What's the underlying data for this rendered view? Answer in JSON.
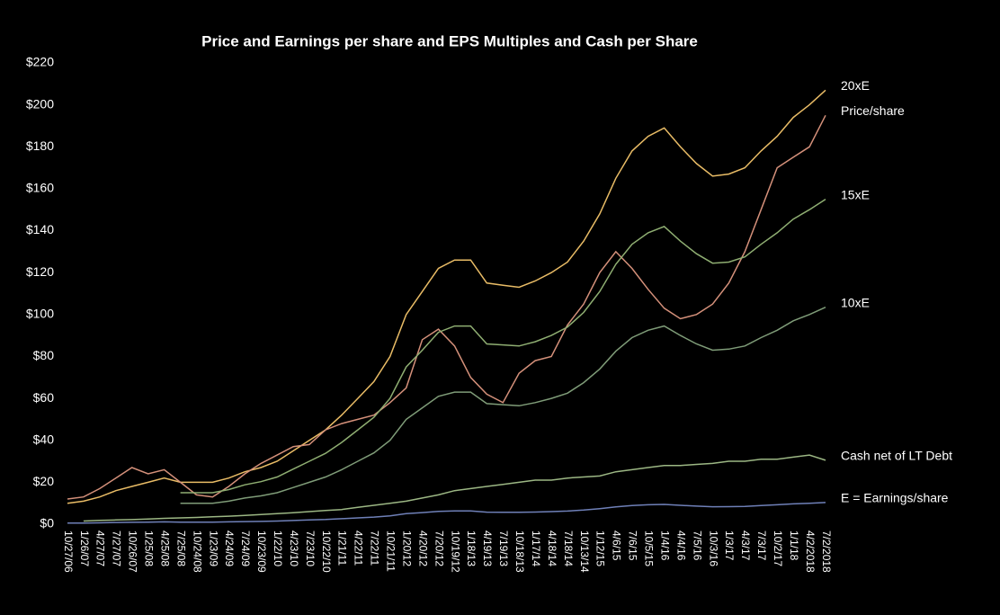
{
  "chart_data": {
    "type": "line",
    "title": "Price and Earnings per share and EPS Multiples and Cash per Share",
    "categories": [
      "10/27/06",
      "1/26/07",
      "4/27/07",
      "7/27/07",
      "10/26/07",
      "1/25/08",
      "4/25/08",
      "7/25/08",
      "10/24/08",
      "1/23/09",
      "4/24/09",
      "7/24/09",
      "10/23/09",
      "1/22/10",
      "4/23/10",
      "7/23/10",
      "10/22/10",
      "1/21/11",
      "4/22/11",
      "7/22/11",
      "10/21/11",
      "1/20/12",
      "4/20/12",
      "7/20/12",
      "10/19/12",
      "1/18/13",
      "4/19/13",
      "7/19/13",
      "10/18/13",
      "1/17/14",
      "4/18/14",
      "7/18/14",
      "10/13/14",
      "1/12/15",
      "4/6/15",
      "7/6/15",
      "10/5/15",
      "1/4/16",
      "4/4/16",
      "7/5/16",
      "10/3/16",
      "1/3/17",
      "4/3/17",
      "7/3/17",
      "10/2/17",
      "1/1/18",
      "4/2/2018",
      "7/2/2018"
    ],
    "series": [
      {
        "name": "20xE",
        "color": "#e9bc66",
        "values": [
          10,
          11,
          13,
          16,
          18,
          20,
          22,
          20,
          20,
          20,
          22,
          25,
          27,
          30,
          35,
          40,
          45,
          52,
          60,
          68,
          80,
          100,
          111,
          122,
          126,
          126,
          115,
          114,
          113,
          116,
          120,
          125,
          135,
          148,
          165,
          178,
          185,
          189,
          180,
          172,
          166,
          167,
          170,
          178,
          185,
          194,
          200,
          207
        ]
      },
      {
        "name": "Price/share",
        "color": "#d4907a",
        "values": [
          12,
          13,
          17,
          22,
          27,
          24,
          26,
          20,
          14,
          13,
          18,
          24,
          29,
          33,
          37,
          38,
          45,
          48,
          50,
          52,
          58,
          65,
          88,
          93,
          85,
          70,
          62,
          58,
          72,
          78,
          80,
          95,
          105,
          120,
          130,
          122,
          112,
          103,
          98,
          100,
          105,
          115,
          130,
          150,
          170,
          175,
          180,
          195
        ]
      },
      {
        "name": "15xE",
        "color": "#8fae72",
        "values": [
          null,
          null,
          null,
          null,
          null,
          null,
          null,
          15,
          15,
          15,
          16.5,
          18.8,
          20.3,
          22.5,
          26.3,
          30,
          33.8,
          39,
          45,
          51,
          60,
          75,
          83,
          91.5,
          94.5,
          94.5,
          86,
          85.5,
          85,
          87,
          90,
          94,
          101,
          111,
          124,
          133.5,
          139,
          142,
          135,
          129,
          124.5,
          125,
          127.5,
          133.5,
          139,
          145.5,
          150,
          155
        ]
      },
      {
        "name": "10xE",
        "color": "#7f9c78",
        "values": [
          null,
          null,
          null,
          null,
          null,
          null,
          null,
          10,
          10,
          10,
          11,
          12.5,
          13.5,
          15,
          17.5,
          20,
          22.5,
          26,
          30,
          34,
          40,
          50,
          55.5,
          61,
          63,
          63,
          57.5,
          57,
          56.5,
          58,
          60,
          62.5,
          67.5,
          74,
          82.5,
          89,
          92.5,
          94.5,
          90,
          86,
          83,
          83.5,
          85,
          89,
          92.5,
          97,
          100,
          103.5
        ]
      },
      {
        "name": "Cash net of LT Debt",
        "color": "#9cb784",
        "values": [
          null,
          1.5,
          1.8,
          2,
          2.2,
          2.5,
          2.8,
          3,
          3.2,
          3.5,
          3.8,
          4.2,
          4.6,
          5,
          5.5,
          6,
          6.5,
          7,
          8,
          9,
          10,
          11,
          12.5,
          14,
          16,
          17,
          18,
          19,
          20,
          21,
          21,
          22,
          22.5,
          23,
          25,
          26,
          27,
          28,
          28,
          28.5,
          29,
          30,
          30,
          31,
          31,
          32,
          33,
          30.5
        ]
      },
      {
        "name": "E = Earnings/share",
        "color": "#6f80b8",
        "values": [
          0.5,
          0.55,
          0.65,
          0.8,
          0.9,
          1,
          1.1,
          1,
          1,
          1,
          1.1,
          1.25,
          1.35,
          1.5,
          1.75,
          2,
          2.25,
          2.6,
          3,
          3.4,
          4,
          5,
          5.55,
          6.1,
          6.3,
          6.3,
          5.75,
          5.7,
          5.65,
          5.8,
          6,
          6.25,
          6.75,
          7.4,
          8.25,
          8.9,
          9.25,
          9.45,
          9,
          8.6,
          8.3,
          8.35,
          8.5,
          8.9,
          9.25,
          9.7,
          10,
          10.35
        ]
      }
    ],
    "ylim": [
      0,
      220
    ],
    "yticks": [
      {
        "value": 0,
        "label": "$0"
      },
      {
        "value": 20,
        "label": "$20"
      },
      {
        "value": 40,
        "label": "$40"
      },
      {
        "value": 60,
        "label": "$60"
      },
      {
        "value": 80,
        "label": "$80"
      },
      {
        "value": 100,
        "label": "$100"
      },
      {
        "value": 120,
        "label": "$120"
      },
      {
        "value": 140,
        "label": "$140"
      },
      {
        "value": 160,
        "label": "$160"
      },
      {
        "value": 180,
        "label": "$180"
      },
      {
        "value": 200,
        "label": "$200"
      },
      {
        "value": 220,
        "label": "$220"
      }
    ],
    "grid": false
  }
}
